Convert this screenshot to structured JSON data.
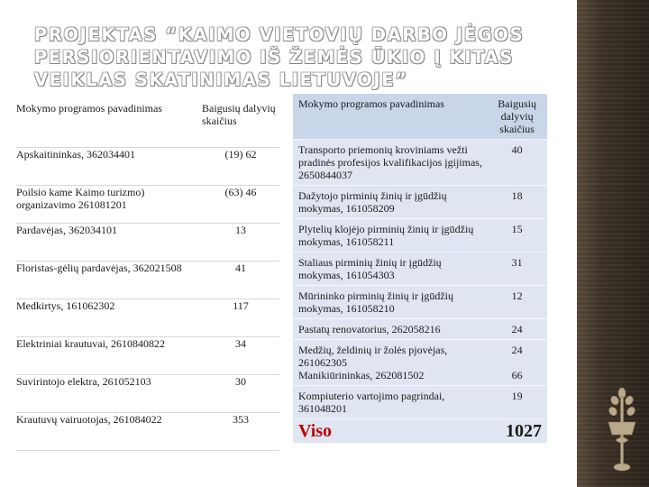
{
  "title": "PROJEKTAS “KAIMO VIETOVIŲ DARBO JĖGOS PERSIORIENTAVIMO IŠ ŽEMĖS ŪKIO Į KITAS VEIKLAS SKATINIMAS LIETUVOJE”",
  "left_table": {
    "header_name": "Mokymo programos pavadinimas",
    "header_count": "Baigusių dalyvių skaičius",
    "rows": [
      {
        "name": "Apskaitininkas, 362034401",
        "count": "(19)  62"
      },
      {
        "name": "Poilsio kame Kaimo turizmo) organizavimo 261081201",
        "count": "(63) 46"
      },
      {
        "name": "Pardavėjas, 362034101",
        "count": "13"
      },
      {
        "name": "Floristas-gėlių pardavėjas, 362021508",
        "count": "41"
      },
      {
        "name": "Medkirtys, 161062302",
        "count": "117"
      },
      {
        "name": "Elektriniai krautuvai, 2610840822",
        "count": "34"
      },
      {
        "name": "Suvirintojo elektra, 261052103",
        "count": "30"
      },
      {
        "name": "Krautuvų vairuotojas, 261084022",
        "count": "353"
      }
    ]
  },
  "right_table": {
    "header_name": "Mokymo programos pavadinimas",
    "header_count": "Baigusių dalyvių skaičius",
    "rows": [
      {
        "name": "Transporto priemonių kroviniams vežti pradinės profesijos kvalifikacijos įgijimas, 2650844037",
        "count": "40"
      },
      {
        "name": "Dažytojo pirminių žinių ir įgūdžių mokymas, 161058209",
        "count": "18"
      },
      {
        "name": "Plytelių klojėjo pirminių žinių ir įgūdžių mokymas, 161058211",
        "count": "15"
      },
      {
        "name": "Staliaus pirminių žinių ir įgūdžių mokymas, 161054303",
        "count": "31"
      },
      {
        "name": "Mūrininko pirminių žinių ir įgūdžių mokymas, 161058210",
        "count": "12"
      },
      {
        "name": "Pastatų  renovatorius, 262058216",
        "count": "24"
      },
      {
        "name": "Medžių, želdinių ir žolės pjovėjas, 261062305",
        "count": "24"
      },
      {
        "name": "Manikiūrininkas, 262081502",
        "count": "66"
      },
      {
        "name": "Kompiuterio vartojimo pagrindai, 361048201",
        "count": "19"
      }
    ],
    "total_label": "Viso",
    "total_value": "1027"
  },
  "colors": {
    "table_fill": "#dfe6f1",
    "total_label": "#c00000",
    "sidebar": "#3d3227"
  },
  "icons": {
    "emblem": "grain-stalk-emblem"
  }
}
